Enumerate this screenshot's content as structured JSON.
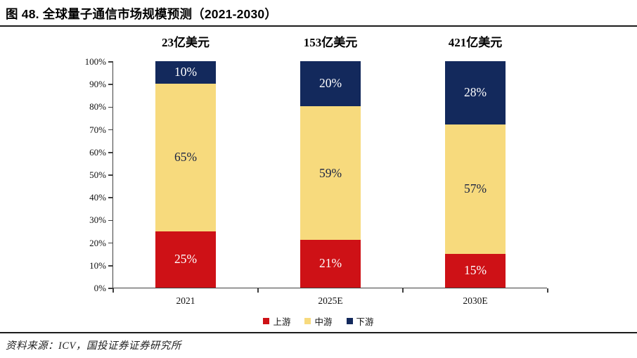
{
  "header": {
    "title": "图 48. 全球量子通信市场规模预测（2021-2030）"
  },
  "chart_data": {
    "type": "bar",
    "stacked": true,
    "title": "全球量子通信市场规模预测（2021-2030）",
    "categories": [
      "2021",
      "2025E",
      "2030E"
    ],
    "totals": [
      "23亿美元",
      "153亿美元",
      "421亿美元"
    ],
    "series": [
      {
        "name": "上游",
        "color": "#CE1116",
        "label_color": "#FFFFFF",
        "values": [
          25,
          21,
          15
        ]
      },
      {
        "name": "中游",
        "color": "#F7DA7D",
        "label_color": "#1A2342",
        "values": [
          65,
          59,
          57
        ]
      },
      {
        "name": "下游",
        "color": "#13295C",
        "label_color": "#FFFFFF",
        "values": [
          10,
          20,
          28
        ]
      }
    ],
    "ylim": [
      0,
      100
    ],
    "ytick_step": 10,
    "ytick_suffix": "%",
    "value_suffix": "%",
    "legend_position": "bottom",
    "grid": false
  },
  "footer": {
    "source": "资料来源：ICV，国投证券证券研究所"
  }
}
